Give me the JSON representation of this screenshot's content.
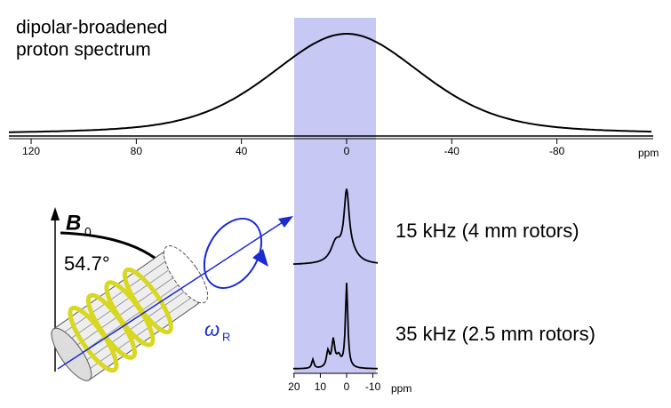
{
  "top_spectrum": {
    "label_lines": [
      "dipolar-broadened",
      "proton spectrum"
    ],
    "ticks": [
      120,
      80,
      40,
      0,
      -40,
      -80
    ],
    "unit": "ppm"
  },
  "bottom_spectra": {
    "ticks": [
      20,
      10,
      0,
      -10
    ],
    "unit": "ppm",
    "traces": [
      {
        "label": "15 kHz (4 mm rotors)"
      },
      {
        "label": "35 kHz (2.5 mm rotors)"
      }
    ]
  },
  "rotor": {
    "field": "B",
    "field_sub": "0",
    "angle": "54.7°",
    "omega": "ω",
    "omega_sub": "R"
  }
}
